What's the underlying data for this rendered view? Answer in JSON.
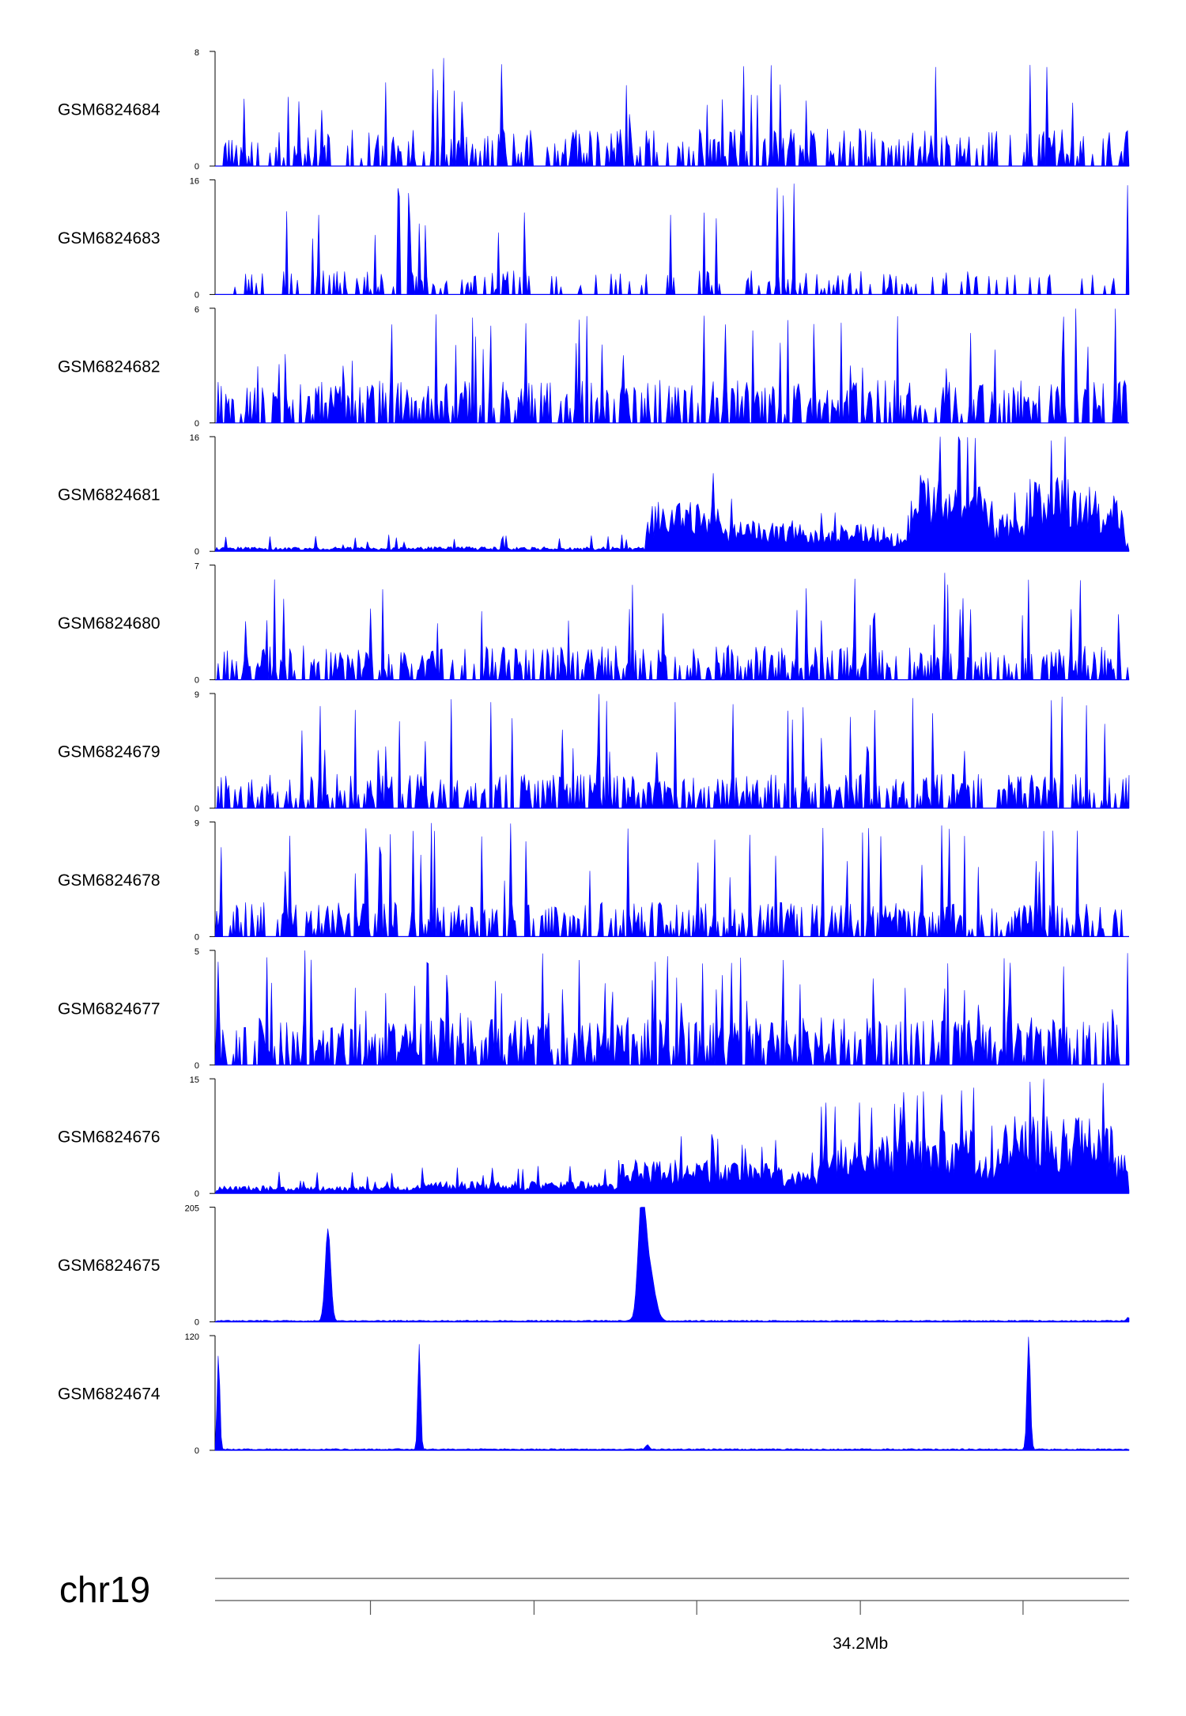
{
  "chart_data": {
    "type": "area",
    "color": "#0000ff",
    "grid": false,
    "legend": "none",
    "tracks": [
      {
        "name": "GSM6824684",
        "ymax": 8,
        "ymax_label": "8",
        "ymin_label": "0",
        "profile": "noise",
        "density": 0.45,
        "mean": 0.22
      },
      {
        "name": "GSM6824683",
        "ymax": 16,
        "ymax_label": "16",
        "ymin_label": "0",
        "profile": "sparse",
        "density": 0.25,
        "mean": 0.14
      },
      {
        "name": "GSM6824682",
        "ymax": 6,
        "ymax_label": "6",
        "ymin_label": "0",
        "profile": "noise",
        "density": 0.55,
        "mean": 0.25
      },
      {
        "name": "GSM6824681",
        "ymax": 16,
        "ymax_label": "16",
        "ymin_label": "0",
        "profile": "regional",
        "regions": [
          [
            0,
            0.47,
            0.03
          ],
          [
            0.47,
            0.55,
            0.32
          ],
          [
            0.55,
            0.64,
            0.2
          ],
          [
            0.64,
            0.68,
            0.14
          ],
          [
            0.68,
            0.74,
            0.18
          ],
          [
            0.74,
            0.76,
            0.12
          ],
          [
            0.76,
            0.85,
            0.5
          ],
          [
            0.85,
            0.89,
            0.25
          ],
          [
            0.89,
            0.96,
            0.5
          ],
          [
            0.96,
            0.995,
            0.4
          ],
          [
            0.995,
            1.0,
            0.08
          ]
        ]
      },
      {
        "name": "GSM6824680",
        "ymax": 7,
        "ymax_label": "7",
        "ymin_label": "0",
        "profile": "noise",
        "density": 0.5,
        "mean": 0.2
      },
      {
        "name": "GSM6824679",
        "ymax": 9,
        "ymax_label": "9",
        "ymin_label": "0",
        "profile": "noise",
        "density": 0.55,
        "mean": 0.2
      },
      {
        "name": "GSM6824678",
        "ymax": 9,
        "ymax_label": "9",
        "ymin_label": "0",
        "profile": "noise",
        "density": 0.55,
        "mean": 0.2
      },
      {
        "name": "GSM6824677",
        "ymax": 5,
        "ymax_label": "5",
        "ymin_label": "0",
        "profile": "noise",
        "density": 0.65,
        "mean": 0.28
      },
      {
        "name": "GSM6824676",
        "ymax": 15,
        "ymax_label": "15",
        "ymin_label": "0",
        "profile": "regional",
        "regions": [
          [
            0,
            0.22,
            0.05
          ],
          [
            0.22,
            0.44,
            0.08
          ],
          [
            0.44,
            0.55,
            0.22
          ],
          [
            0.55,
            0.62,
            0.2
          ],
          [
            0.62,
            0.66,
            0.15
          ],
          [
            0.66,
            0.75,
            0.38
          ],
          [
            0.75,
            0.83,
            0.45
          ],
          [
            0.83,
            0.86,
            0.3
          ],
          [
            0.86,
            0.98,
            0.5
          ],
          [
            0.98,
            1.0,
            0.25
          ]
        ]
      },
      {
        "name": "GSM6824675",
        "ymax": 205,
        "ymax_label": "205",
        "ymin_label": "0",
        "profile": "peaks",
        "peaks": [
          {
            "x": 0.122,
            "h": 0.8,
            "w": 0.003
          },
          {
            "x": 0.466,
            "h": 0.97,
            "w": 0.004
          },
          {
            "x": 0.474,
            "h": 0.45,
            "w": 0.006
          },
          {
            "x": 0.999,
            "h": 0.03,
            "w": 0.002
          }
        ]
      },
      {
        "name": "GSM6824674",
        "ymax": 120,
        "ymax_label": "120",
        "ymin_label": "0",
        "profile": "peaks",
        "peaks": [
          {
            "x": 0.002,
            "h": 0.83,
            "w": 0.0015
          },
          {
            "x": 0.222,
            "h": 0.92,
            "w": 0.0015
          },
          {
            "x": 0.472,
            "h": 0.04,
            "w": 0.002
          },
          {
            "x": 0.89,
            "h": 0.98,
            "w": 0.0018
          }
        ]
      }
    ],
    "x_axis": {
      "chromosome": "chr19",
      "tick_labels": [
        "",
        "",
        "",
        "34.2Mb",
        ""
      ],
      "tick_fractions": [
        0.17,
        0.349,
        0.527,
        0.706,
        0.884
      ]
    }
  }
}
